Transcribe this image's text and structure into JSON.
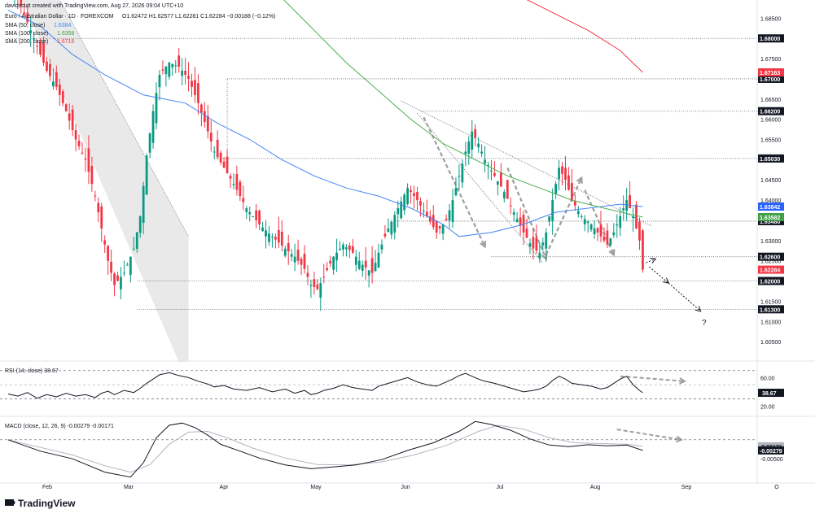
{
  "header": {
    "credit": "davidscutt created with TradingView.com, Aug 27, 2026 09:04 UTC+10",
    "symbol": "Euro / Australian Dollar · 1D · FOREXCOM",
    "ohlc": "O1.62472  H1.62577  L1.62281  C1.62284  −0.00188 (−0.12%)",
    "sma50": "SMA (50, close)",
    "sma100": "SMA (100, close)",
    "sma200": "SMA (200, close)",
    "sma50_val": "1.6384",
    "sma100_val": "1.6358",
    "sma200_val": "1.6716"
  },
  "brand": {
    "name": "TradingView"
  },
  "annotation": {
    "question": "?"
  },
  "chart_data": [
    {
      "type": "candlestick",
      "pair": "EUR/AUD",
      "timeframe": "1D",
      "x_labels": [
        "Feb",
        "Mar",
        "Apr",
        "May",
        "Jun",
        "Jul",
        "Aug",
        "Sep",
        "O"
      ],
      "y_ticks": [
        1.605,
        1.61,
        1.615,
        1.62,
        1.625,
        1.63,
        1.635,
        1.64,
        1.645,
        1.65,
        1.655,
        1.66,
        1.665,
        1.67,
        1.675,
        1.68,
        1.685
      ],
      "y_tick_labels": [
        "1.60500",
        "1.61000",
        "1.61500",
        "1.62000",
        "1.62500",
        "1.63000",
        "1.63500",
        "1.64000",
        "1.64500",
        "1.65000",
        "1.65500",
        "1.66000",
        "1.66500",
        "1.67000",
        "1.67500",
        "1.68000",
        "1.68500"
      ],
      "ylim": [
        1.601,
        1.6895
      ],
      "levels": [
        {
          "value": 1.68,
          "label": "1.68000"
        },
        {
          "value": 1.67,
          "label": "1.67000"
        },
        {
          "value": 1.662,
          "label": "1.66200"
        },
        {
          "value": 1.6503,
          "label": "1.65030"
        },
        {
          "value": 1.6348,
          "label": "1.63480"
        },
        {
          "value": 1.626,
          "label": "1.62600"
        },
        {
          "value": 1.62,
          "label": "1.62000"
        },
        {
          "value": 1.613,
          "label": "1.61300"
        }
      ],
      "current_tags": [
        {
          "label": "1.67163",
          "value": 1.6716,
          "color": "#f23645"
        },
        {
          "label": "1.63842",
          "value": 1.6384,
          "color": "#2962ff"
        },
        {
          "label": "1.63582",
          "value": 1.6358,
          "color": "#43a047"
        },
        {
          "label": "1.62284",
          "value": 1.6228,
          "color": "#f23645"
        }
      ],
      "close_path": [
        [
          0,
          1.694
        ],
        [
          3,
          1.69
        ],
        [
          6,
          1.684
        ],
        [
          9,
          1.678
        ],
        [
          12,
          1.672
        ],
        [
          15,
          1.668
        ],
        [
          18,
          1.662
        ],
        [
          21,
          1.655
        ],
        [
          24,
          1.65
        ],
        [
          27,
          1.641
        ],
        [
          29,
          1.633
        ],
        [
          31,
          1.625
        ],
        [
          33,
          1.619
        ],
        [
          36,
          1.622
        ],
        [
          39,
          1.628
        ],
        [
          41,
          1.636
        ],
        [
          43,
          1.651
        ],
        [
          45,
          1.662
        ],
        [
          47,
          1.671
        ],
        [
          50,
          1.674
        ],
        [
          53,
          1.673
        ],
        [
          56,
          1.67
        ],
        [
          59,
          1.664
        ],
        [
          62,
          1.657
        ],
        [
          64,
          1.652
        ],
        [
          67,
          1.648
        ],
        [
          70,
          1.644
        ],
        [
          74,
          1.638
        ],
        [
          78,
          1.634
        ],
        [
          82,
          1.631
        ],
        [
          86,
          1.628
        ],
        [
          89,
          1.626
        ],
        [
          92,
          1.623
        ],
        [
          94,
          1.619
        ],
        [
          96,
          1.618
        ],
        [
          98,
          1.621
        ],
        [
          101,
          1.626
        ],
        [
          104,
          1.629
        ],
        [
          107,
          1.627
        ],
        [
          110,
          1.624
        ],
        [
          113,
          1.622
        ],
        [
          115,
          1.627
        ],
        [
          118,
          1.633
        ],
        [
          121,
          1.638
        ],
        [
          124,
          1.643
        ],
        [
          127,
          1.64
        ],
        [
          130,
          1.636
        ],
        [
          133,
          1.632
        ],
        [
          136,
          1.635
        ],
        [
          138,
          1.64
        ],
        [
          140,
          1.646
        ],
        [
          142,
          1.652
        ],
        [
          144,
          1.657
        ],
        [
          146,
          1.654
        ],
        [
          148,
          1.65
        ],
        [
          151,
          1.646
        ],
        [
          154,
          1.642
        ],
        [
          157,
          1.637
        ],
        [
          160,
          1.632
        ],
        [
          163,
          1.628
        ],
        [
          165,
          1.627
        ],
        [
          167,
          1.632
        ],
        [
          169,
          1.64
        ],
        [
          171,
          1.648
        ],
        [
          173,
          1.645
        ],
        [
          175,
          1.64
        ],
        [
          178,
          1.636
        ],
        [
          181,
          1.634
        ],
        [
          184,
          1.631
        ],
        [
          186,
          1.629
        ],
        [
          188,
          1.632
        ],
        [
          190,
          1.636
        ],
        [
          192,
          1.64
        ],
        [
          194,
          1.636
        ],
        [
          196,
          1.63
        ],
        [
          197,
          1.6228
        ]
      ],
      "sma50_path": [
        [
          0,
          1.687
        ],
        [
          10,
          1.683
        ],
        [
          20,
          1.676
        ],
        [
          30,
          1.671
        ],
        [
          42,
          1.666
        ],
        [
          55,
          1.664
        ],
        [
          65,
          1.659
        ],
        [
          75,
          1.655
        ],
        [
          85,
          1.65
        ],
        [
          95,
          1.646
        ],
        [
          105,
          1.643
        ],
        [
          115,
          1.641
        ],
        [
          125,
          1.638
        ],
        [
          135,
          1.634
        ],
        [
          140,
          1.631
        ],
        [
          150,
          1.632
        ],
        [
          160,
          1.634
        ],
        [
          170,
          1.637
        ],
        [
          180,
          1.638
        ],
        [
          190,
          1.639
        ],
        [
          197,
          1.6384
        ]
      ],
      "sma100_path": [
        [
          85,
          1.69
        ],
        [
          95,
          1.682
        ],
        [
          105,
          1.674
        ],
        [
          115,
          1.667
        ],
        [
          125,
          1.66
        ],
        [
          135,
          1.654
        ],
        [
          145,
          1.65
        ],
        [
          155,
          1.646
        ],
        [
          165,
          1.643
        ],
        [
          175,
          1.64
        ],
        [
          185,
          1.638
        ],
        [
          197,
          1.6358
        ]
      ],
      "sma200_path": [
        [
          160,
          1.69
        ],
        [
          170,
          1.686
        ],
        [
          180,
          1.682
        ],
        [
          190,
          1.677
        ],
        [
          197,
          1.6716
        ]
      ],
      "sma_colors": {
        "sma50": "#4285f4",
        "sma100": "#4caf50",
        "sma200": "#f23645"
      }
    },
    {
      "type": "line",
      "name": "RSI (14; close)",
      "value_label": "38.67",
      "y_ticks": [
        20,
        40,
        60
      ],
      "y_tick_labels": [
        "20.00",
        "",
        "60.00"
      ],
      "ylim": [
        10,
        80
      ],
      "bands": [
        30,
        50,
        70
      ],
      "series": [
        {
          "values": [
            [
              0,
              37
            ],
            [
              3,
              34
            ],
            [
              6,
              39
            ],
            [
              9,
              31
            ],
            [
              12,
              36
            ],
            [
              15,
              33
            ],
            [
              18,
              38
            ],
            [
              21,
              34
            ],
            [
              24,
              36
            ],
            [
              27,
              32
            ],
            [
              29,
              38
            ],
            [
              31,
              41
            ],
            [
              33,
              36
            ],
            [
              36,
              42
            ],
            [
              39,
              39
            ],
            [
              41,
              45
            ],
            [
              43,
              52
            ],
            [
              45,
              58
            ],
            [
              47,
              64
            ],
            [
              50,
              67
            ],
            [
              53,
              63
            ],
            [
              56,
              60
            ],
            [
              59,
              55
            ],
            [
              62,
              51
            ],
            [
              64,
              47
            ],
            [
              67,
              49
            ],
            [
              70,
              44
            ],
            [
              74,
              42
            ],
            [
              78,
              46
            ],
            [
              82,
              40
            ],
            [
              86,
              44
            ],
            [
              89,
              38
            ],
            [
              92,
              42
            ],
            [
              94,
              36
            ],
            [
              96,
              38
            ],
            [
              98,
              42
            ],
            [
              101,
              45
            ],
            [
              104,
              50
            ],
            [
              107,
              46
            ],
            [
              110,
              44
            ],
            [
              113,
              42
            ],
            [
              115,
              48
            ],
            [
              118,
              52
            ],
            [
              121,
              56
            ],
            [
              124,
              60
            ],
            [
              127,
              54
            ],
            [
              130,
              50
            ],
            [
              133,
              48
            ],
            [
              136,
              54
            ],
            [
              138,
              58
            ],
            [
              140,
              63
            ],
            [
              142,
              66
            ],
            [
              144,
              62
            ],
            [
              146,
              58
            ],
            [
              148,
              55
            ],
            [
              151,
              52
            ],
            [
              154,
              48
            ],
            [
              157,
              44
            ],
            [
              160,
              40
            ],
            [
              163,
              42
            ],
            [
              165,
              44
            ],
            [
              167,
              48
            ],
            [
              169,
              56
            ],
            [
              171,
              62
            ],
            [
              173,
              58
            ],
            [
              175,
              52
            ],
            [
              178,
              50
            ],
            [
              181,
              48
            ],
            [
              184,
              44
            ],
            [
              186,
              46
            ],
            [
              188,
              52
            ],
            [
              190,
              58
            ],
            [
              192,
              62
            ],
            [
              194,
              50
            ],
            [
              196,
              42
            ],
            [
              197,
              38.67
            ]
          ]
        }
      ]
    },
    {
      "type": "line",
      "name": "MACD (close, 12, 26, 9)",
      "value_label": "-0.00279",
      "signal_label": "-0.00171",
      "y_ticks": [
        0,
        -0.005
      ],
      "y_tick_labels": [
        "",
        "-0.00500"
      ],
      "ylim": [
        -0.0105,
        0.0055
      ],
      "zero_line": 0,
      "series": [
        {
          "name": "MACD",
          "color": "#131722",
          "values": [
            [
              0,
              0.0
            ],
            [
              10,
              -0.003
            ],
            [
              20,
              -0.005
            ],
            [
              30,
              -0.0085
            ],
            [
              38,
              -0.0098
            ],
            [
              42,
              -0.006
            ],
            [
              46,
              0.0005
            ],
            [
              50,
              0.0038
            ],
            [
              54,
              0.0044
            ],
            [
              58,
              0.0032
            ],
            [
              62,
              0.0012
            ],
            [
              66,
              -0.0012
            ],
            [
              72,
              -0.003
            ],
            [
              78,
              -0.0048
            ],
            [
              86,
              -0.0066
            ],
            [
              94,
              -0.0076
            ],
            [
              100,
              -0.0072
            ],
            [
              108,
              -0.0066
            ],
            [
              116,
              -0.0052
            ],
            [
              124,
              -0.0028
            ],
            [
              132,
              -0.0008
            ],
            [
              140,
              0.0022
            ],
            [
              145,
              0.0048
            ],
            [
              150,
              0.004
            ],
            [
              156,
              0.0025
            ],
            [
              162,
              0.0002
            ],
            [
              168,
              -0.0014
            ],
            [
              174,
              -0.0018
            ],
            [
              180,
              -0.0013
            ],
            [
              186,
              -0.0016
            ],
            [
              192,
              -0.0014
            ],
            [
              197,
              -0.00279
            ]
          ]
        },
        {
          "name": "Signal",
          "color": "#b2b5be",
          "values": [
            [
              0,
              0.0
            ],
            [
              10,
              -0.002
            ],
            [
              20,
              -0.004
            ],
            [
              30,
              -0.0068
            ],
            [
              38,
              -0.0085
            ],
            [
              44,
              -0.0065
            ],
            [
              50,
              -0.0012
            ],
            [
              56,
              0.002
            ],
            [
              62,
              0.0022
            ],
            [
              68,
              0.0005
            ],
            [
              76,
              -0.0022
            ],
            [
              86,
              -0.0048
            ],
            [
              96,
              -0.0065
            ],
            [
              106,
              -0.0066
            ],
            [
              116,
              -0.0058
            ],
            [
              126,
              -0.004
            ],
            [
              136,
              -0.0015
            ],
            [
              146,
              0.0022
            ],
            [
              152,
              0.0038
            ],
            [
              160,
              0.0028
            ],
            [
              168,
              0.0005
            ],
            [
              176,
              -0.0008
            ],
            [
              184,
              -0.001
            ],
            [
              192,
              -0.0012
            ],
            [
              197,
              -0.00171
            ]
          ]
        }
      ]
    }
  ]
}
